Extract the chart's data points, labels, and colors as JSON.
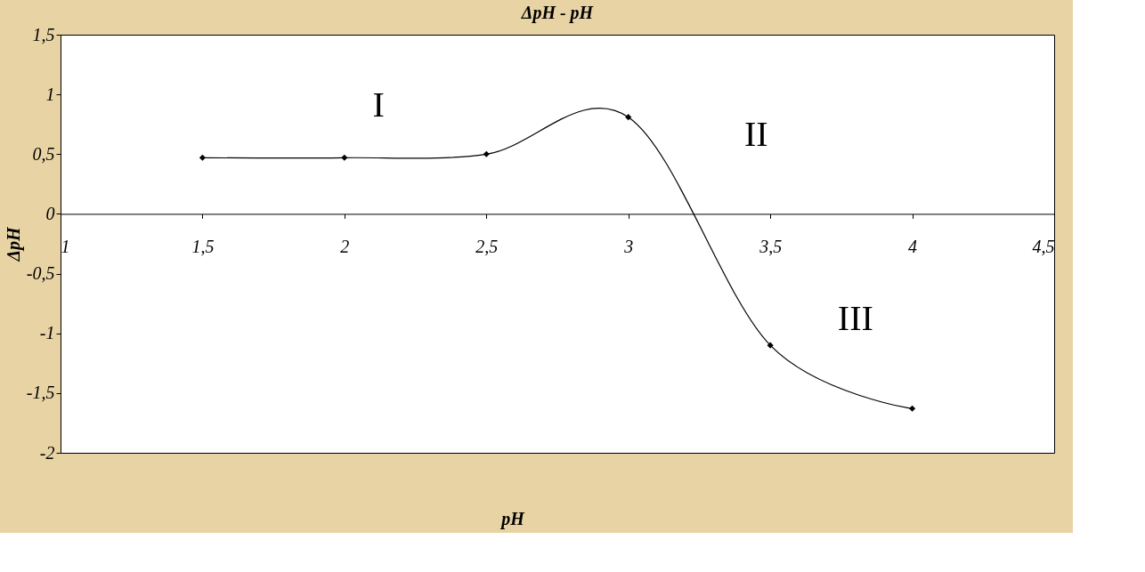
{
  "chart_data": {
    "type": "line",
    "title": "ΔpH - pH",
    "xlabel": "pH",
    "ylabel": "ΔpH",
    "x": [
      1.5,
      2,
      2.5,
      3,
      3.5,
      4
    ],
    "series": [
      {
        "color": "#000000",
        "values": [
          0.47,
          0.47,
          0.5,
          0.81,
          -1.1,
          -1.63
        ]
      }
    ],
    "xlim": [
      1,
      4.5
    ],
    "ylim": [
      -2,
      1.5
    ],
    "xticks": [
      1,
      {
        "value": 1.5,
        "label": "1,5"
      },
      2,
      {
        "value": 2.5,
        "label": "2,5"
      },
      3,
      {
        "value": 3.5,
        "label": "3,5"
      },
      4,
      {
        "value": 4.5,
        "label": "4,5"
      }
    ],
    "yticks": [
      -2,
      {
        "value": -1.5,
        "label": "-1,5"
      },
      -1,
      {
        "value": -0.5,
        "label": "-0,5"
      },
      0,
      {
        "value": 0.5,
        "label": "0,5"
      },
      1,
      {
        "value": 1.5,
        "label": "1,5"
      }
    ],
    "annotations": [
      "I",
      "II",
      "III"
    ],
    "marker": "diamond",
    "line_style": "solid",
    "grid": false,
    "legend": false
  }
}
